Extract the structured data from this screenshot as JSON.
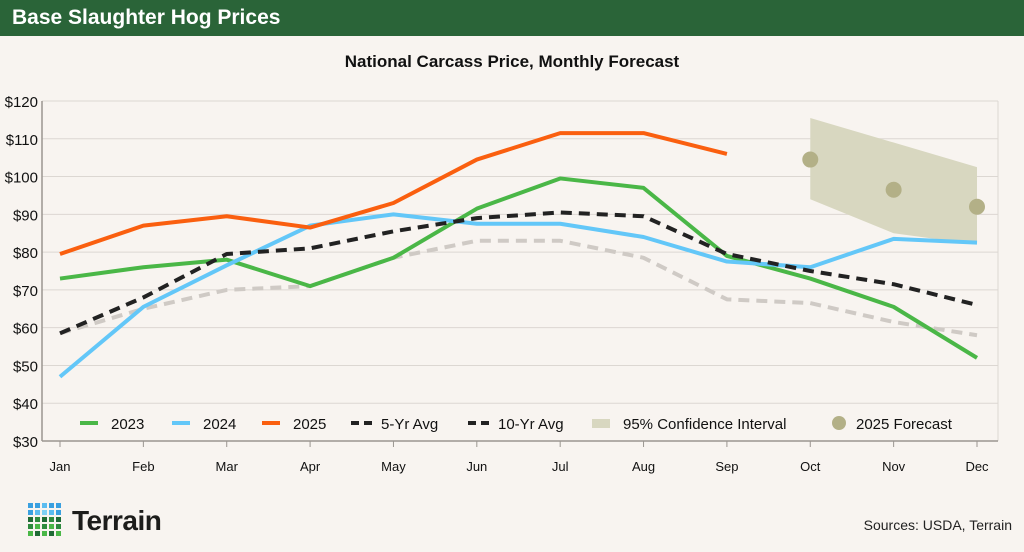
{
  "header": {
    "title": "Base Slaughter Hog Prices"
  },
  "chart_data": {
    "type": "line",
    "title": "National Carcass Price, Monthly Forecast",
    "xlabel": "",
    "ylabel": "",
    "categories": [
      "Jan",
      "Feb",
      "Mar",
      "Apr",
      "May",
      "Jun",
      "Jul",
      "Aug",
      "Sep",
      "Oct",
      "Nov",
      "Dec"
    ],
    "ylim": [
      30,
      120
    ],
    "yticks": [
      30,
      40,
      50,
      60,
      70,
      80,
      90,
      100,
      110,
      120
    ],
    "ytick_labels": [
      "$30",
      "$40",
      "$50",
      "$60",
      "$70",
      "$80",
      "$90",
      "$100",
      "$110",
      "$120"
    ],
    "grid": true,
    "legend_position": "bottom-inside",
    "series": [
      {
        "name": "2023",
        "color": "#4ab747",
        "style": "solid",
        "values": [
          73,
          76,
          78,
          71,
          78.5,
          91.5,
          99.5,
          97,
          79,
          73,
          65.5,
          52
        ]
      },
      {
        "name": "2024",
        "color": "#63c7f8",
        "style": "solid",
        "values": [
          47,
          65.5,
          76.5,
          87,
          90,
          87.5,
          87.5,
          84,
          77.5,
          76,
          83.5,
          82.5
        ]
      },
      {
        "name": "2025",
        "color": "#fa5f0f",
        "style": "solid",
        "values": [
          79.5,
          87,
          89.5,
          86.5,
          93,
          104.5,
          111.5,
          111.5,
          106,
          null,
          null,
          null
        ]
      },
      {
        "name": "5-Yr Avg",
        "color": "#222222",
        "style": "dashed",
        "values": [
          58.5,
          68,
          79.5,
          81,
          85.5,
          89,
          90.5,
          89.5,
          79.5,
          75,
          71.5,
          66
        ]
      },
      {
        "name": "10-Yr Avg",
        "color": "#cfcac5",
        "style": "dashed",
        "legend_color": "#222222",
        "values": [
          58.5,
          65,
          70,
          71,
          78.5,
          83,
          83,
          78.5,
          67.5,
          66.5,
          61.5,
          58
        ]
      }
    ],
    "confidence_interval": {
      "name": "95% Confidence Interval",
      "color": "#d8d7c0",
      "months": [
        "Oct",
        "Nov",
        "Dec"
      ],
      "lower": [
        94,
        85,
        82
      ],
      "upper": [
        115.5,
        109,
        102.5
      ]
    },
    "forecast": {
      "name": "2025 Forecast",
      "color": "#b3b087",
      "months": [
        "Oct",
        "Nov",
        "Dec"
      ],
      "values": [
        104.5,
        96.5,
        92
      ]
    }
  },
  "footer": {
    "logo_text": "Terrain",
    "sources": "Sources: USDA, Terrain"
  }
}
